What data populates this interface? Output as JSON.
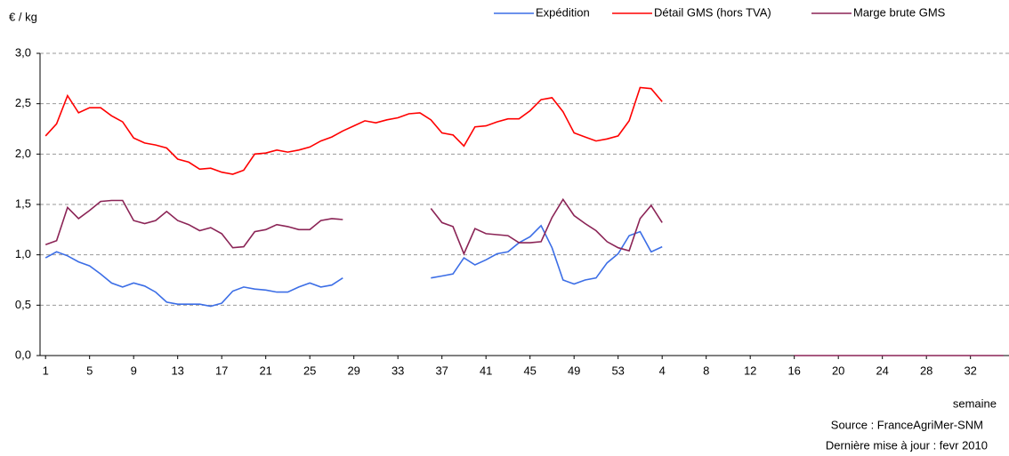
{
  "chart_data": {
    "type": "line",
    "y_label": "€ / kg",
    "x_label": "semaine",
    "source": "Source : FranceAgriMer-SNM",
    "update_note": "Dernière mise à jour : fevr 2010",
    "categories": [
      "1",
      null,
      null,
      null,
      "5",
      null,
      null,
      null,
      "9",
      null,
      null,
      null,
      "13",
      null,
      null,
      null,
      "17",
      null,
      null,
      null,
      "21",
      null,
      null,
      null,
      "25",
      null,
      null,
      null,
      "29",
      null,
      null,
      null,
      "33",
      null,
      null,
      null,
      "37",
      null,
      null,
      null,
      "41",
      null,
      null,
      null,
      "45",
      null,
      null,
      null,
      "49",
      null,
      null,
      null,
      "53",
      null,
      null,
      null,
      "4",
      null,
      null,
      null,
      "8",
      null,
      null,
      null,
      "12",
      null,
      null,
      null,
      "16",
      null,
      null,
      null,
      "20",
      null,
      null,
      null,
      "24",
      null,
      null,
      null,
      "28",
      null,
      null,
      null,
      "32",
      null,
      null,
      null
    ],
    "series": [
      {
        "name": "Expédition",
        "color": "#3c6ee6",
        "values": [
          0.97,
          1.03,
          0.99,
          0.93,
          0.89,
          0.81,
          0.72,
          0.68,
          0.72,
          0.69,
          0.63,
          0.53,
          0.51,
          0.51,
          0.51,
          0.49,
          0.52,
          0.64,
          0.68,
          0.66,
          0.65,
          0.63,
          0.63,
          0.68,
          0.72,
          0.68,
          0.7,
          0.77,
          null,
          null,
          null,
          null,
          null,
          null,
          null,
          0.77,
          0.79,
          0.81,
          0.97,
          0.9,
          0.95,
          1.01,
          1.03,
          1.12,
          1.18,
          1.29,
          1.07,
          0.75,
          0.71,
          0.75,
          0.77,
          0.92,
          1.01,
          1.19,
          1.23,
          1.03,
          1.08,
          null,
          null,
          null,
          null,
          null,
          null,
          null,
          null,
          null,
          null,
          null,
          null,
          null,
          null,
          null,
          null,
          null,
          null,
          null,
          null,
          null,
          null,
          null,
          null,
          null,
          null,
          null,
          null,
          null,
          null,
          null
        ]
      },
      {
        "name": "Détail GMS (hors TVA)",
        "color": "#ff0000",
        "values": [
          2.18,
          2.3,
          2.58,
          2.41,
          2.46,
          2.46,
          2.38,
          2.32,
          2.16,
          2.11,
          2.09,
          2.06,
          1.95,
          1.92,
          1.85,
          1.86,
          1.82,
          1.8,
          1.84,
          2.0,
          2.01,
          2.04,
          2.02,
          2.04,
          2.07,
          2.13,
          2.17,
          2.23,
          2.28,
          2.33,
          2.31,
          2.34,
          2.36,
          2.4,
          2.41,
          2.34,
          2.21,
          2.19,
          2.08,
          2.27,
          2.28,
          2.32,
          2.35,
          2.35,
          2.43,
          2.54,
          2.56,
          2.42,
          2.21,
          2.17,
          2.13,
          2.15,
          2.18,
          2.33,
          2.66,
          2.65,
          2.52,
          null,
          null,
          null,
          null,
          null,
          null,
          null,
          null,
          null,
          null,
          null,
          null,
          null,
          null,
          null,
          null,
          null,
          null,
          null,
          null,
          null,
          null,
          null,
          null,
          null,
          null,
          null,
          null,
          null,
          null,
          null
        ]
      },
      {
        "name": "Marge brute GMS",
        "color": "#8b2456",
        "values": [
          1.1,
          1.14,
          1.47,
          1.36,
          1.44,
          1.53,
          1.54,
          1.54,
          1.34,
          1.31,
          1.34,
          1.43,
          1.34,
          1.3,
          1.24,
          1.27,
          1.21,
          1.07,
          1.08,
          1.23,
          1.25,
          1.3,
          1.28,
          1.25,
          1.25,
          1.34,
          1.36,
          1.35,
          null,
          null,
          null,
          null,
          null,
          null,
          null,
          1.46,
          1.32,
          1.28,
          1.01,
          1.26,
          1.21,
          1.2,
          1.19,
          1.12,
          1.12,
          1.13,
          1.37,
          1.55,
          1.39,
          1.31,
          1.24,
          1.13,
          1.07,
          1.04,
          1.36,
          1.49,
          1.32,
          null,
          null,
          null,
          null,
          null,
          null,
          null,
          null,
          null,
          null,
          null,
          0,
          0,
          0,
          0,
          0,
          0,
          0,
          0,
          0,
          0,
          0,
          0,
          0,
          0,
          0,
          0,
          0,
          0,
          0,
          0
        ]
      }
    ],
    "ylim": [
      0,
      3
    ],
    "yticks": [
      {
        "value": 0,
        "label": "0,0"
      },
      {
        "value": 0.5,
        "label": "0,5"
      },
      {
        "value": 1,
        "label": "1,0"
      },
      {
        "value": 1.5,
        "label": "1,5"
      },
      {
        "value": 2,
        "label": "2,0"
      },
      {
        "value": 2.5,
        "label": "2,5"
      },
      {
        "value": 3,
        "label": "3,0"
      }
    ],
    "grid": true
  }
}
